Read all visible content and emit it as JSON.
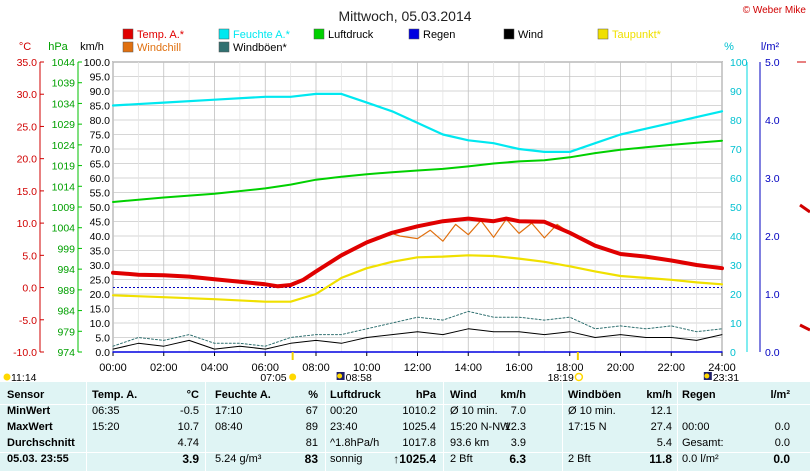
{
  "title": "Mittwoch, 05.03.2014",
  "copyright": "© Weber Mike",
  "colors": {
    "temp": "#e00000",
    "humidity": "#00e8f0",
    "pressure": "#00d000",
    "rain": "#0000e0",
    "wind": "#000000",
    "dewpoint": "#f0e000",
    "windchill": "#e07010",
    "gust": "#307070"
  },
  "legend": [
    {
      "label": "Temp. A.*",
      "color": "#e00000"
    },
    {
      "label": "Feuchte A.*",
      "color": "#00e8f0"
    },
    {
      "label": "Luftdruck",
      "color": "#00d000"
    },
    {
      "label": "Regen",
      "color": "#0000e0"
    },
    {
      "label": "Wind",
      "color": "#000000"
    },
    {
      "label": "Taupunkt*",
      "color": "#f0e000"
    },
    {
      "label": "Windchill",
      "color": "#e07010"
    },
    {
      "label": "Windböen*",
      "color": "#307070"
    }
  ],
  "axis_units": {
    "temp": "°C",
    "pressure": "hPa",
    "wind": "km/h",
    "humidity": "%",
    "rain": "l/m²"
  },
  "axes": {
    "temp_ticks": [
      "35.0",
      "30.0",
      "25.0",
      "20.0",
      "15.0",
      "10.0",
      "5.0",
      "0.0",
      "-5.0",
      "-10.0"
    ],
    "pressure_ticks": [
      "1044",
      "1039",
      "1034",
      "1029",
      "1024",
      "1019",
      "1014",
      "1009",
      "1004",
      "999",
      "994",
      "989",
      "984",
      "979",
      "974"
    ],
    "wind_ticks": [
      "100.0",
      "95.0",
      "90.0",
      "85.0",
      "80.0",
      "75.0",
      "70.0",
      "65.0",
      "60.0",
      "55.0",
      "50.0",
      "45.0",
      "40.0",
      "35.0",
      "30.0",
      "25.0",
      "20.0",
      "15.0",
      "10.0",
      "5.0",
      "0.0"
    ],
    "humidity_ticks": [
      "100",
      "90",
      "80",
      "70",
      "60",
      "50",
      "40",
      "30",
      "20",
      "10",
      "0"
    ],
    "rain_ticks": [
      "5.0",
      "4.0",
      "3.0",
      "2.0",
      "1.0",
      "0.0"
    ],
    "x_ticks": [
      "00:00",
      "02:00",
      "04:00",
      "06:00",
      "08:00",
      "10:00",
      "12:00",
      "14:00",
      "16:00",
      "18:00",
      "20:00",
      "22:00",
      "24:00"
    ]
  },
  "sun_markers": {
    "sunrise": "07:05",
    "sunset": "18:19",
    "moonrise": "08:58",
    "moonset": "23:31",
    "time_left": "11:14"
  },
  "chart_data": {
    "type": "line",
    "title": "Mittwoch, 05.03.2014",
    "x_unit": "hours",
    "xlim": [
      0,
      24
    ],
    "series": [
      {
        "name": "Temp. A.*",
        "axis": "°C",
        "ylim": [
          -10,
          35
        ],
        "x": [
          0,
          1,
          2,
          3,
          4,
          5,
          6,
          6.5,
          7,
          7.5,
          8,
          9,
          10,
          11,
          12,
          13,
          14,
          15,
          15.5,
          16,
          17,
          18,
          19,
          20,
          21,
          22,
          23,
          24
        ],
        "values": [
          2.3,
          2.0,
          1.9,
          1.7,
          1.3,
          0.9,
          0.5,
          0.2,
          0.4,
          1.2,
          2.5,
          5.0,
          7.0,
          8.5,
          9.5,
          10.3,
          10.7,
          10.3,
          10.7,
          10.3,
          10.2,
          8.5,
          6.5,
          5.2,
          4.8,
          4.2,
          3.5,
          3.0
        ]
      },
      {
        "name": "Windchill",
        "axis": "°C",
        "ylim": [
          -10,
          35
        ],
        "x": [
          10,
          11,
          11.3,
          12,
          12.5,
          13,
          13.5,
          14,
          14.5,
          15,
          15.5,
          16,
          16.5,
          17,
          17.5,
          18
        ],
        "values": [
          7.0,
          8.4,
          8.0,
          7.6,
          8.9,
          7.2,
          9.8,
          8.2,
          10.4,
          7.8,
          10.6,
          8.4,
          10.0,
          7.7,
          9.8,
          8.5
        ]
      },
      {
        "name": "Taupunkt*",
        "axis": "°C",
        "ylim": [
          -10,
          35
        ],
        "x": [
          0,
          2,
          4,
          6,
          7,
          8,
          9,
          10,
          11,
          12,
          13,
          14,
          15,
          16,
          17,
          18,
          19,
          20,
          21,
          22,
          23,
          24
        ],
        "values": [
          -1.2,
          -1.5,
          -1.8,
          -2.2,
          -2.2,
          -1.0,
          1.5,
          3.0,
          4.0,
          4.7,
          4.8,
          5.0,
          4.9,
          4.5,
          4.0,
          3.3,
          2.5,
          1.8,
          1.5,
          1.2,
          0.8,
          0.5
        ]
      },
      {
        "name": "Feuchte A.*",
        "axis": "%",
        "ylim": [
          0,
          100
        ],
        "x": [
          0,
          2,
          4,
          6,
          7,
          8,
          9,
          10,
          11,
          12,
          13,
          14,
          15,
          16,
          17,
          18,
          19,
          20,
          21,
          22,
          23,
          24
        ],
        "values": [
          85,
          86,
          87,
          88,
          88,
          89,
          89,
          86,
          83,
          79,
          75,
          73,
          72,
          70,
          69,
          69,
          72,
          75,
          77,
          79,
          81,
          83
        ]
      },
      {
        "name": "Luftdruck",
        "axis": "hPa",
        "ylim": [
          974,
          1044
        ],
        "x": [
          0,
          2,
          4,
          6,
          7,
          8,
          9,
          10,
          11,
          12,
          13,
          14,
          15,
          16,
          17,
          18,
          19,
          20,
          21,
          22,
          23,
          24
        ],
        "values": [
          1010.2,
          1011.3,
          1012.2,
          1013.5,
          1014.4,
          1015.6,
          1016.3,
          1016.9,
          1017.4,
          1017.8,
          1018.2,
          1018.8,
          1019.5,
          1020.0,
          1020.3,
          1021.0,
          1022.0,
          1022.8,
          1023.4,
          1024.0,
          1024.5,
          1025.0
        ]
      },
      {
        "name": "Wind",
        "axis": "km/h",
        "ylim": [
          0,
          100
        ],
        "x": [
          0,
          1,
          2,
          3,
          4,
          5,
          6,
          7,
          8,
          9,
          10,
          11,
          12,
          13,
          14,
          15,
          16,
          17,
          18,
          19,
          20,
          21,
          22,
          23,
          24
        ],
        "values": [
          1,
          3,
          2,
          4,
          1,
          2,
          1,
          3,
          4,
          3,
          5,
          6,
          7,
          6,
          8,
          7,
          7,
          6,
          7,
          5,
          6,
          5,
          5,
          4,
          6
        ]
      },
      {
        "name": "Windböen*",
        "axis": "km/h",
        "ylim": [
          0,
          100
        ],
        "x": [
          0,
          1,
          2,
          3,
          4,
          5,
          6,
          7,
          8,
          9,
          10,
          11,
          12,
          13,
          14,
          15,
          16,
          17,
          18,
          19,
          20,
          21,
          22,
          23,
          24
        ],
        "values": [
          2,
          5,
          4,
          6,
          3,
          3,
          2,
          5,
          6,
          6,
          8,
          10,
          12,
          11,
          14,
          12,
          12,
          11,
          12,
          8,
          9,
          8,
          9,
          7,
          8
        ]
      },
      {
        "name": "Regen",
        "axis": "l/m²",
        "ylim": [
          0,
          5
        ],
        "x": [
          0,
          24
        ],
        "values": [
          0,
          0
        ]
      }
    ],
    "reference_line": {
      "axis": "°C",
      "value": 0
    }
  },
  "table": {
    "rows": [
      [
        "Sensor",
        "Temp. A.",
        "°C",
        "Feuchte A.",
        "%",
        "Luftdruck",
        "hPa",
        "Wind",
        "km/h",
        "Windböen",
        "km/h",
        "Regen",
        "l/m²"
      ],
      [
        "MinWert",
        "06:35",
        "-0.5",
        "17:10",
        "67",
        "00:20",
        "1010.2",
        "Ø 10 min.",
        "7.0",
        "Ø 10 min.",
        "12.1",
        "",
        ""
      ],
      [
        "MaxWert",
        "15:20",
        "10.7",
        "08:40",
        "89",
        "23:40",
        "1025.4",
        "15:20  N-NW",
        "12.3",
        "17:15  N",
        "27.4",
        "00:00",
        "0.0"
      ],
      [
        "Durchschnitt",
        "",
        "4.74",
        "",
        "81",
        "^1.8hPa/h",
        "1017.8",
        "93.6 km",
        "3.9",
        "",
        "5.4",
        "Gesamt:",
        "0.0"
      ],
      [
        "05.03.  23:55",
        "",
        "3.9",
        "5.24 g/m³",
        "83",
        "sonnig",
        "↑1025.4",
        "2 Bft",
        "6.3",
        "2 Bft",
        "11.8",
        "0.0 l/m²",
        "0.0"
      ]
    ]
  }
}
